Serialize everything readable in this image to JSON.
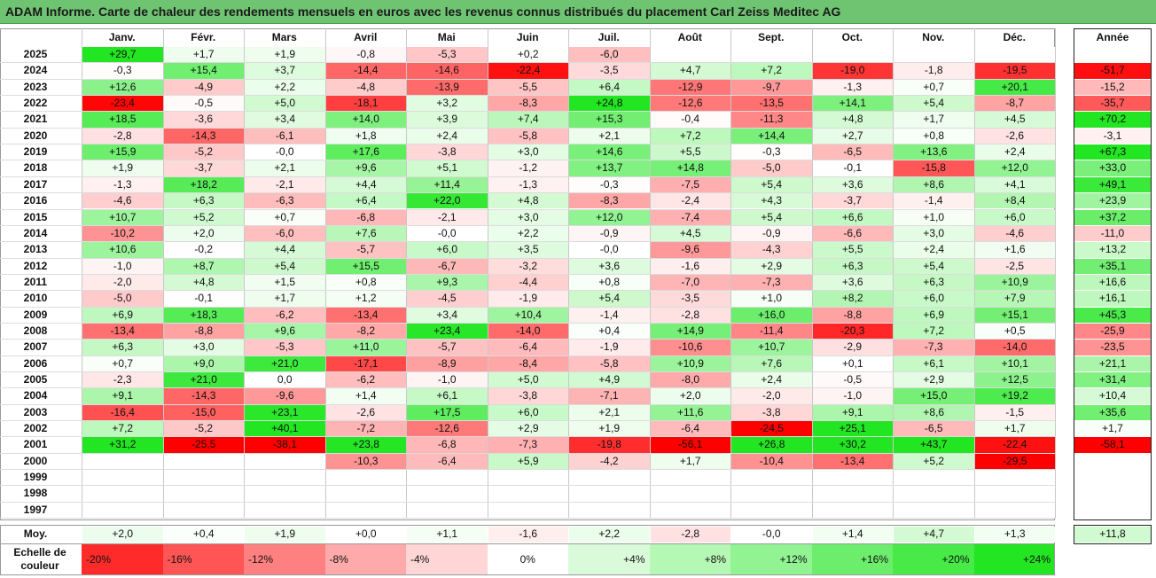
{
  "title": "ADAM Informe. Carte de chaleur des rendements mensuels en euros avec les revenus connus distribués du placement Carl Zeiss Meditec AG",
  "chart_data": {
    "type": "heatmap",
    "months": [
      "Janv.",
      "Févr.",
      "Mars",
      "Avril",
      "Mai",
      "Juin",
      "Juil.",
      "Août",
      "Sept.",
      "Oct.",
      "Nov.",
      "Déc."
    ],
    "year_header": "Année",
    "rows": [
      {
        "year": "2025",
        "values": [
          "+29,7",
          "+1,7",
          "+1,9",
          "-0,8",
          "-5,3",
          "+0,2",
          "-6,0",
          "",
          "",
          "",
          "",
          ""
        ],
        "annual": ""
      },
      {
        "year": "2024",
        "values": [
          "-0,3",
          "+15,4",
          "+3,7",
          "-14,4",
          "-14,6",
          "-22,4",
          "-3,5",
          "+4,7",
          "+7,2",
          "-19,0",
          "-1,8",
          "-19,5"
        ],
        "annual": "-51,7"
      },
      {
        "year": "2023",
        "values": [
          "+12,6",
          "-4,9",
          "+2,2",
          "-4,8",
          "-13,9",
          "-5,5",
          "+6,4",
          "-12,9",
          "-9,7",
          "-1,3",
          "+0,7",
          "+20,1"
        ],
        "annual": "-15,2"
      },
      {
        "year": "2022",
        "values": [
          "-23,4",
          "-0,5",
          "+5,0",
          "-18,1",
          "+3,2",
          "-8,3",
          "+24,8",
          "-12,6",
          "-13,5",
          "+14,1",
          "+5,4",
          "-8,7"
        ],
        "annual": "-35,7"
      },
      {
        "year": "2021",
        "values": [
          "+18,5",
          "-3,6",
          "+3,4",
          "+14,0",
          "+3,9",
          "+7,4",
          "+15,3",
          "-0,4",
          "-11,3",
          "+4,8",
          "+1,7",
          "+4,5"
        ],
        "annual": "+70,2"
      },
      {
        "year": "2020",
        "values": [
          "-2,8",
          "-14,3",
          "-6,1",
          "+1,8",
          "+2,4",
          "-5,8",
          "+2,1",
          "+7,2",
          "+14,4",
          "+2,7",
          "+0,8",
          "-2,6"
        ],
        "annual": "-3,1"
      },
      {
        "year": "2019",
        "values": [
          "+15,9",
          "-5,2",
          "-0,0",
          "+17,6",
          "-3,8",
          "+3,0",
          "+14,6",
          "+5,5",
          "-0,3",
          "-6,5",
          "+13,6",
          "+2,4"
        ],
        "annual": "+67,3"
      },
      {
        "year": "2018",
        "values": [
          "+1,9",
          "-3,7",
          "+2,1",
          "+9,6",
          "+5,1",
          "-1,2",
          "+13,7",
          "+14,8",
          "-5,0",
          "-0,1",
          "-15,8",
          "+12,0"
        ],
        "annual": "+33,0"
      },
      {
        "year": "2017",
        "values": [
          "-1,3",
          "+18,2",
          "-2,1",
          "+4,4",
          "+11,4",
          "-1,3",
          "-0,3",
          "-7,5",
          "+5,4",
          "+3,6",
          "+8,6",
          "+4,1"
        ],
        "annual": "+49,1"
      },
      {
        "year": "2016",
        "values": [
          "-4,6",
          "+6,3",
          "-6,3",
          "+6,4",
          "+22,0",
          "+4,8",
          "-8,3",
          "-2,4",
          "+4,3",
          "-3,7",
          "-1,4",
          "+8,4"
        ],
        "annual": "+23,9"
      },
      {
        "year": "2015",
        "values": [
          "+10,7",
          "+5,2",
          "+0,7",
          "-6,8",
          "-2,1",
          "+3,0",
          "+12,0",
          "-7,4",
          "+5,4",
          "+6,6",
          "+1,0",
          "+6,0"
        ],
        "annual": "+37,2"
      },
      {
        "year": "2014",
        "values": [
          "-10,2",
          "+2,0",
          "-6,0",
          "+7,6",
          "-0,0",
          "+2,2",
          "-0,9",
          "+4,5",
          "-0,9",
          "-6,6",
          "+3,0",
          "-4,6"
        ],
        "annual": "-11,0"
      },
      {
        "year": "2013",
        "values": [
          "+10,6",
          "-0,2",
          "+4,4",
          "-5,7",
          "+6,0",
          "+3,5",
          "-0,0",
          "-9,6",
          "-4,3",
          "+5,5",
          "+2,4",
          "+1,6"
        ],
        "annual": "+13,2"
      },
      {
        "year": "2012",
        "values": [
          "-1,0",
          "+8,7",
          "+5,4",
          "+15,5",
          "-6,7",
          "-3,2",
          "+3,6",
          "-1,6",
          "+2,9",
          "+6,3",
          "+5,4",
          "-2,5"
        ],
        "annual": "+35,1"
      },
      {
        "year": "2011",
        "values": [
          "-2,0",
          "+4,8",
          "+1,5",
          "+0,8",
          "+9,3",
          "-4,4",
          "+0,8",
          "-7,0",
          "-7,3",
          "+3,6",
          "+6,3",
          "+10,9"
        ],
        "annual": "+16,6"
      },
      {
        "year": "2010",
        "values": [
          "-5,0",
          "-0,1",
          "+1,7",
          "+1,2",
          "-4,5",
          "-1,9",
          "+5,4",
          "-3,5",
          "+1,0",
          "+8,2",
          "+6,0",
          "+7,9"
        ],
        "annual": "+16,1"
      },
      {
        "year": "2009",
        "values": [
          "+6,9",
          "+18,3",
          "-6,2",
          "-13,4",
          "+3,4",
          "+10,4",
          "-1,4",
          "-2,8",
          "+16,0",
          "-8,8",
          "+6,9",
          "+15,1"
        ],
        "annual": "+45,3"
      },
      {
        "year": "2008",
        "values": [
          "-13,4",
          "-8,8",
          "+9,6",
          "-8,2",
          "+23,4",
          "-14,0",
          "+0,4",
          "+14,9",
          "-11,4",
          "-20,3",
          "+7,2",
          "+0,5"
        ],
        "annual": "-25,9"
      },
      {
        "year": "2007",
        "values": [
          "+6,3",
          "+3,0",
          "-5,3",
          "+11,0",
          "-5,7",
          "-6,4",
          "-1,9",
          "-10,6",
          "+10,7",
          "-2,9",
          "-7,3",
          "-14,0"
        ],
        "annual": "-23,5"
      },
      {
        "year": "2006",
        "values": [
          "+0,7",
          "+9,0",
          "+21,0",
          "-17,1",
          "-8,9",
          "-8,4",
          "-5,8",
          "+10,9",
          "+7,6",
          "+0,1",
          "+6,1",
          "+10,1"
        ],
        "annual": "+21,1"
      },
      {
        "year": "2005",
        "values": [
          "-2,3",
          "+21,0",
          "0,0",
          "-6,2",
          "-1,0",
          "+5,0",
          "+4,9",
          "-8,0",
          "+2,4",
          "-0,5",
          "+2,9",
          "+12,5"
        ],
        "annual": "+31,4"
      },
      {
        "year": "2004",
        "values": [
          "+9,1",
          "-14,3",
          "-9,6",
          "+1,4",
          "+6,1",
          "-3,8",
          "-7,1",
          "+2,0",
          "-2,0",
          "-1,0",
          "+15,0",
          "+19,2"
        ],
        "annual": "+10,4"
      },
      {
        "year": "2003",
        "values": [
          "-16,4",
          "-15,0",
          "+23,1",
          "-2,6",
          "+17,5",
          "+6,0",
          "+2,1",
          "+11,6",
          "-3,8",
          "+9,1",
          "+8,6",
          "-1,5"
        ],
        "annual": "+35,6"
      },
      {
        "year": "2002",
        "values": [
          "+7,2",
          "-5,2",
          "+40,1",
          "-7,2",
          "-12,6",
          "+2,9",
          "+1,9",
          "-6,4",
          "-24,5",
          "+25,1",
          "-6,5",
          "+1,7"
        ],
        "annual": "+1,7"
      },
      {
        "year": "2001",
        "values": [
          "+31,2",
          "-25,5",
          "-38,1",
          "+23,8",
          "-6,8",
          "-7,3",
          "-19,8",
          "-56,1",
          "+26,8",
          "+30,2",
          "+43,7",
          "-22,4"
        ],
        "annual": "-58,1"
      },
      {
        "year": "2000",
        "values": [
          "",
          "",
          "",
          "-10,3",
          "-6,4",
          "+5,9",
          "-4,2",
          "+1,7",
          "-10,4",
          "-13,4",
          "+5,2",
          "-29,5"
        ],
        "annual": ""
      },
      {
        "year": "1999",
        "values": [
          "",
          "",
          "",
          "",
          "",
          "",
          "",
          "",
          "",
          "",
          "",
          ""
        ],
        "annual": ""
      },
      {
        "year": "1998",
        "values": [
          "",
          "",
          "",
          "",
          "",
          "",
          "",
          "",
          "",
          "",
          "",
          ""
        ],
        "annual": ""
      },
      {
        "year": "1997",
        "values": [
          "",
          "",
          "",
          "",
          "",
          "",
          "",
          "",
          "",
          "",
          "",
          ""
        ],
        "annual": ""
      }
    ],
    "average": {
      "label": "Moy.",
      "values": [
        "+2,0",
        "+0,4",
        "+1,9",
        "+0,0",
        "+1,1",
        "-1,6",
        "+2,2",
        "-2,8",
        "-0,0",
        "+1,4",
        "+4,7",
        "+1,3"
      ],
      "annual": "+11,8"
    },
    "legend": {
      "title": "Echelle de couleur",
      "items": [
        {
          "label": "-20%",
          "value": -20
        },
        {
          "label": "-16%",
          "value": -16
        },
        {
          "label": "-12%",
          "value": -12
        },
        {
          "label": "-8%",
          "value": -8
        },
        {
          "label": "-4%",
          "value": -4
        },
        {
          "label": "0%",
          "value": 0
        },
        {
          "label": "+4%",
          "value": 4
        },
        {
          "label": "+8%",
          "value": 8
        },
        {
          "label": "+12%",
          "value": 12
        },
        {
          "label": "+16%",
          "value": 16
        },
        {
          "label": "+20%",
          "value": 20
        },
        {
          "label": "+24%",
          "value": 24
        }
      ]
    },
    "colors": {
      "negative_max": "#ff0000",
      "neutral": "#ffffff",
      "positive_max": "#22e622",
      "title_bg": "#6fc472"
    }
  }
}
